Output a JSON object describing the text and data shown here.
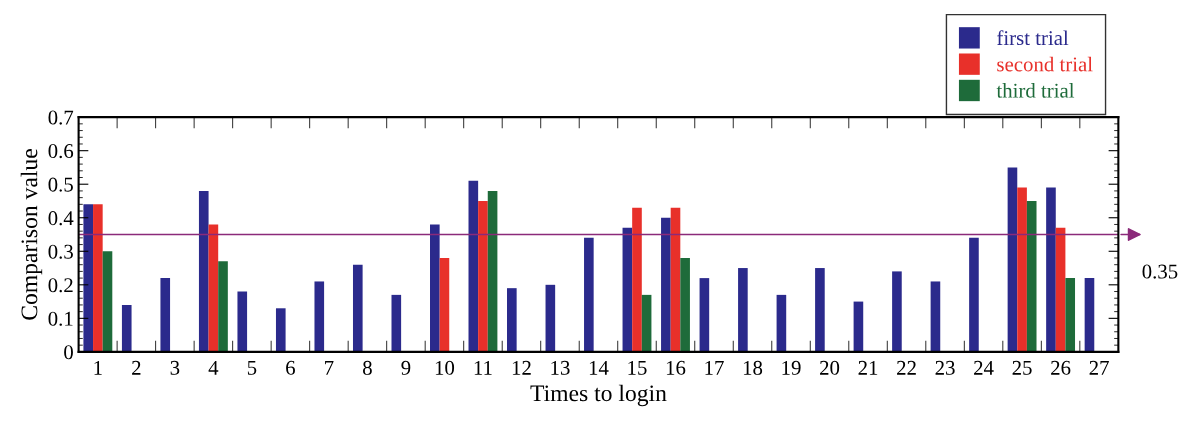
{
  "chart_data": {
    "type": "bar",
    "xlabel": "Times to login",
    "ylabel": "Comparison value",
    "categories": [
      "1",
      "2",
      "3",
      "4",
      "5",
      "6",
      "7",
      "8",
      "9",
      "10",
      "11",
      "12",
      "13",
      "14",
      "15",
      "16",
      "17",
      "18",
      "19",
      "20",
      "21",
      "22",
      "23",
      "24",
      "25",
      "26",
      "27"
    ],
    "series": [
      {
        "name": "first trial",
        "color": "#2b2a8c",
        "values": [
          0.44,
          0.14,
          0.22,
          0.48,
          0.18,
          0.13,
          0.21,
          0.26,
          0.17,
          0.38,
          0.51,
          0.19,
          0.2,
          0.34,
          0.37,
          0.4,
          0.22,
          0.25,
          0.17,
          0.25,
          0.15,
          0.24,
          0.21,
          0.34,
          0.55,
          0.49,
          0.22
        ]
      },
      {
        "name": "second trial",
        "color": "#e8302a",
        "values": [
          0.44,
          null,
          null,
          0.38,
          null,
          null,
          null,
          null,
          null,
          0.28,
          0.45,
          null,
          null,
          null,
          0.43,
          0.43,
          null,
          null,
          null,
          null,
          null,
          null,
          null,
          null,
          0.49,
          0.37,
          null
        ]
      },
      {
        "name": "third trial",
        "color": "#1e6b3a",
        "values": [
          0.3,
          null,
          null,
          0.27,
          null,
          null,
          null,
          null,
          null,
          null,
          0.48,
          null,
          null,
          null,
          0.17,
          0.28,
          null,
          null,
          null,
          null,
          null,
          null,
          null,
          null,
          0.45,
          0.22,
          null
        ]
      }
    ],
    "ylim": [
      0,
      0.7
    ],
    "yticks": [
      0,
      0.1,
      0.2,
      0.3,
      0.4,
      0.5,
      0.6,
      0.7
    ],
    "ref_lines": [
      {
        "axis": "y",
        "value": 0.35,
        "label": "0.35",
        "color": "#8b2a7a"
      }
    ],
    "legend": "top right",
    "grid": false
  }
}
